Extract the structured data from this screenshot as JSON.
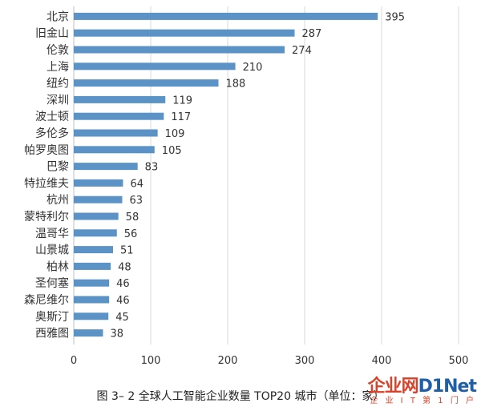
{
  "chart_data": {
    "type": "bar",
    "orientation": "horizontal",
    "categories": [
      "北京",
      "旧金山",
      "伦敦",
      "上海",
      "纽约",
      "深圳",
      "波士顿",
      "多伦多",
      "帕罗奥图",
      "巴黎",
      "特拉维夫",
      "杭州",
      "蒙特利尔",
      "温哥华",
      "山景城",
      "柏林",
      "圣何塞",
      "森尼维尔",
      "奥斯汀",
      "西雅图"
    ],
    "values": [
      395,
      287,
      274,
      210,
      188,
      119,
      117,
      109,
      105,
      83,
      64,
      63,
      58,
      56,
      51,
      48,
      46,
      46,
      45,
      38
    ],
    "xlim": [
      0,
      500
    ],
    "xticks": [
      0,
      100,
      200,
      300,
      400,
      500
    ],
    "bar_color": "#5b93c6",
    "grid": true,
    "legend": "none"
  },
  "caption": "图 3– 2  全球人工智能企业数量 TOP20 城市（单位：家）",
  "watermark": {
    "main_prefix": "企业网",
    "main_accent": "D1Net",
    "sub": "企 业 I T 第 1 门 户"
  }
}
